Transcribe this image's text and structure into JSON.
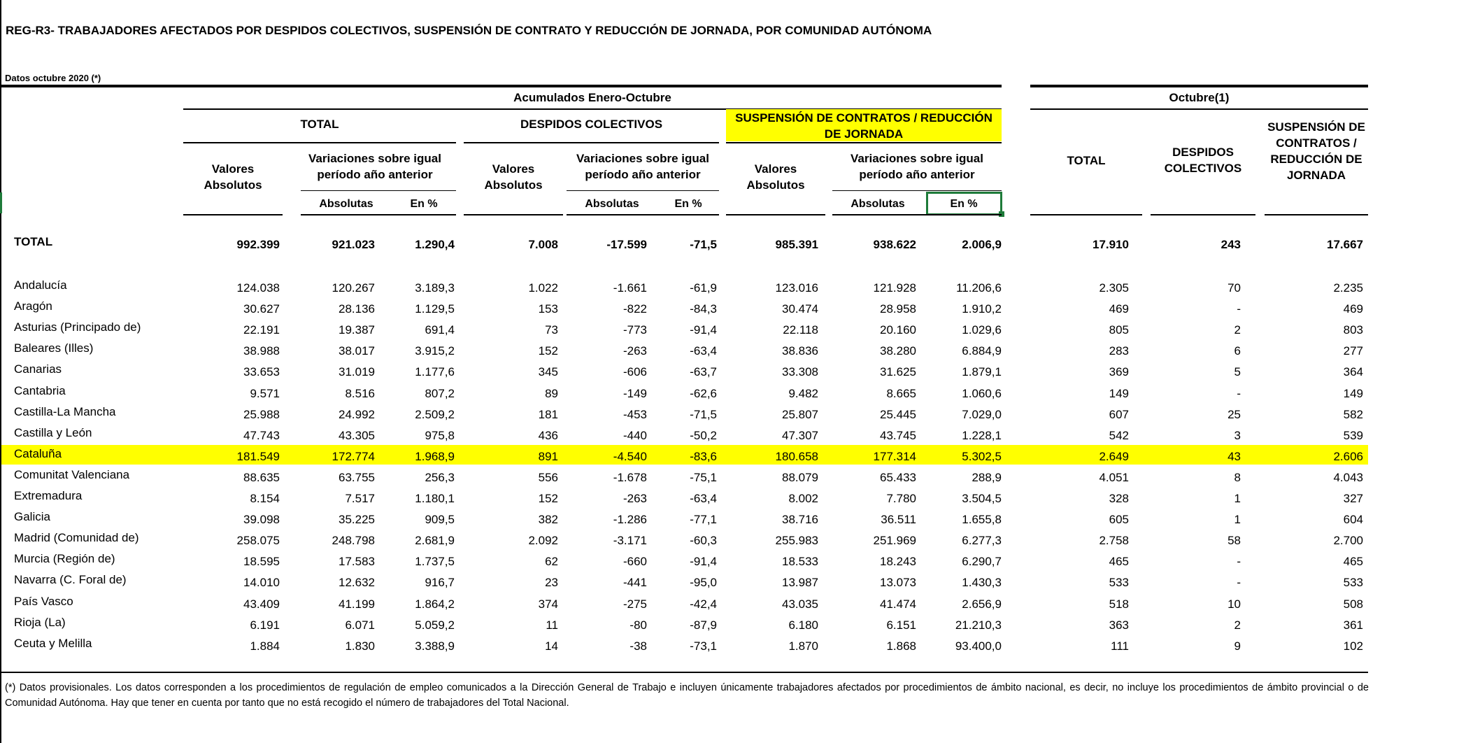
{
  "title": "REG-R3- TRABAJADORES AFECTADOS POR DESPIDOS COLECTIVOS, SUSPENSIÓN DE CONTRATO Y REDUCCIÓN DE JORNADA, POR COMUNIDAD AUTÓNOMA",
  "subtitle": "Datos octubre 2020 (*)",
  "headers": {
    "acumulados": "Acumulados Enero-Octubre",
    "octubre": "Octubre(1)",
    "total_group": "TOTAL",
    "despidos_group": "DESPIDOS COLECTIVOS",
    "suspension_group": "SUSPENSIÓN DE CONTRATOS / REDUCCIÓN DE JORNADA",
    "valores_absolutos": "Valores Absolutos",
    "variaciones": "Variaciones sobre igual período año anterior",
    "absolutas": "Absolutas",
    "en_pct": "En %",
    "oct_total": "TOTAL",
    "oct_despidos": "DESPIDOS COLECTIVOS",
    "oct_suspension": "SUSPENSIÓN DE CONTRATOS / REDUCCIÓN DE JORNADA"
  },
  "total_row": {
    "label": "TOTAL",
    "values": [
      "992.399",
      "921.023",
      "1.290,4",
      "7.008",
      "-17.599",
      "-71,5",
      "985.391",
      "938.622",
      "2.006,9",
      "17.910",
      "243",
      "17.667"
    ]
  },
  "rows": [
    {
      "label": "Andalucía",
      "values": [
        "124.038",
        "120.267",
        "3.189,3",
        "1.022",
        "-1.661",
        "-61,9",
        "123.016",
        "121.928",
        "11.206,6",
        "2.305",
        "70",
        "2.235"
      ]
    },
    {
      "label": "Aragón",
      "values": [
        "30.627",
        "28.136",
        "1.129,5",
        "153",
        "-822",
        "-84,3",
        "30.474",
        "28.958",
        "1.910,2",
        "469",
        "-",
        "469"
      ]
    },
    {
      "label": "Asturias (Principado de)",
      "values": [
        "22.191",
        "19.387",
        "691,4",
        "73",
        "-773",
        "-91,4",
        "22.118",
        "20.160",
        "1.029,6",
        "805",
        "2",
        "803"
      ]
    },
    {
      "label": "Baleares (Illes)",
      "values": [
        "38.988",
        "38.017",
        "3.915,2",
        "152",
        "-263",
        "-63,4",
        "38.836",
        "38.280",
        "6.884,9",
        "283",
        "6",
        "277"
      ]
    },
    {
      "label": "Canarias",
      "values": [
        "33.653",
        "31.019",
        "1.177,6",
        "345",
        "-606",
        "-63,7",
        "33.308",
        "31.625",
        "1.879,1",
        "369",
        "5",
        "364"
      ]
    },
    {
      "label": "Cantabria",
      "values": [
        "9.571",
        "8.516",
        "807,2",
        "89",
        "-149",
        "-62,6",
        "9.482",
        "8.665",
        "1.060,6",
        "149",
        "-",
        "149"
      ]
    },
    {
      "label": "Castilla-La Mancha",
      "values": [
        "25.988",
        "24.992",
        "2.509,2",
        "181",
        "-453",
        "-71,5",
        "25.807",
        "25.445",
        "7.029,0",
        "607",
        "25",
        "582"
      ]
    },
    {
      "label": "Castilla y León",
      "values": [
        "47.743",
        "43.305",
        "975,8",
        "436",
        "-440",
        "-50,2",
        "47.307",
        "43.745",
        "1.228,1",
        "542",
        "3",
        "539"
      ]
    },
    {
      "label": "Cataluña",
      "values": [
        "181.549",
        "172.774",
        "1.968,9",
        "891",
        "-4.540",
        "-83,6",
        "180.658",
        "177.314",
        "5.302,5",
        "2.649",
        "43",
        "2.606"
      ],
      "highlight": true
    },
    {
      "label": "Comunitat Valenciana",
      "values": [
        "88.635",
        "63.755",
        "256,3",
        "556",
        "-1.678",
        "-75,1",
        "88.079",
        "65.433",
        "288,9",
        "4.051",
        "8",
        "4.043"
      ]
    },
    {
      "label": "Extremadura",
      "values": [
        "8.154",
        "7.517",
        "1.180,1",
        "152",
        "-263",
        "-63,4",
        "8.002",
        "7.780",
        "3.504,5",
        "328",
        "1",
        "327"
      ]
    },
    {
      "label": "Galicia",
      "values": [
        "39.098",
        "35.225",
        "909,5",
        "382",
        "-1.286",
        "-77,1",
        "38.716",
        "36.511",
        "1.655,8",
        "605",
        "1",
        "604"
      ]
    },
    {
      "label": "Madrid (Comunidad de)",
      "values": [
        "258.075",
        "248.798",
        "2.681,9",
        "2.092",
        "-3.171",
        "-60,3",
        "255.983",
        "251.969",
        "6.277,3",
        "2.758",
        "58",
        "2.700"
      ]
    },
    {
      "label": "Murcia (Región de)",
      "values": [
        "18.595",
        "17.583",
        "1.737,5",
        "62",
        "-660",
        "-91,4",
        "18.533",
        "18.243",
        "6.290,7",
        "465",
        "-",
        "465"
      ]
    },
    {
      "label": "Navarra (C. Foral de)",
      "values": [
        "14.010",
        "12.632",
        "916,7",
        "23",
        "-441",
        "-95,0",
        "13.987",
        "13.073",
        "1.430,3",
        "533",
        "-",
        "533"
      ]
    },
    {
      "label": "País Vasco",
      "values": [
        "43.409",
        "41.199",
        "1.864,2",
        "374",
        "-275",
        "-42,4",
        "43.035",
        "41.474",
        "2.656,9",
        "518",
        "10",
        "508"
      ]
    },
    {
      "label": "Rioja (La)",
      "values": [
        "6.191",
        "6.071",
        "5.059,2",
        "11",
        "-80",
        "-87,9",
        "6.180",
        "6.151",
        "21.210,3",
        "363",
        "2",
        "361"
      ]
    },
    {
      "label": "Ceuta y Melilla",
      "values": [
        "1.884",
        "1.830",
        "3.388,9",
        "14",
        "-38",
        "-73,1",
        "1.870",
        "1.868",
        "93.400,0",
        "111",
        "9",
        "102"
      ]
    }
  ],
  "footnote": "(*) Datos provisionales. Los datos corresponden a los procedimientos de regulación de empleo comunicados a la Dirección General de Trabajo e incluyen únicamente trabajadores afectados por procedimientos de ámbito nacional, es decir, no incluye los procedimientos de ámbito provincial o de Comunidad Autónoma. Hay que tener en cuenta por tanto que no está recogido el número de trabajadores del Total Nacional.",
  "colors": {
    "highlight": "#ffff00",
    "selection": "#1e7b3a"
  }
}
